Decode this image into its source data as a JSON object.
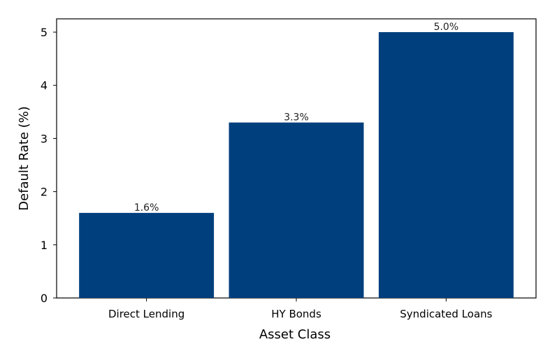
{
  "chart_data": {
    "type": "bar",
    "categories": [
      "Direct Lending",
      "HY Bonds",
      "Syndicated Loans"
    ],
    "values": [
      1.6,
      3.3,
      5.0
    ],
    "data_labels": [
      "1.6%",
      "3.3%",
      "5.0%"
    ],
    "title": "",
    "xlabel": "Asset Class",
    "ylabel": "Default Rate (%)",
    "ylim": [
      0,
      5.25
    ],
    "yticks": [
      0,
      1,
      2,
      3,
      4,
      5
    ],
    "grid": false,
    "legend": "none",
    "bar_color": "#003f7d"
  }
}
